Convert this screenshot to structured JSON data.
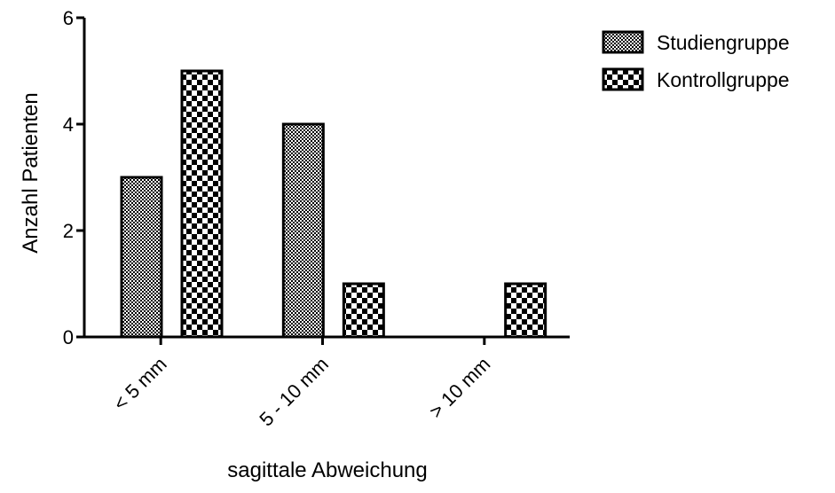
{
  "chart_data": {
    "type": "bar",
    "title": "",
    "xlabel": "sagittale Abweichung",
    "ylabel": "Anzahl Patienten",
    "categories": [
      "< 5 mm",
      "5 - 10 mm",
      "> 10 mm"
    ],
    "series": [
      {
        "name": "Studiengruppe",
        "values": [
          3,
          4,
          0
        ],
        "pattern": "fine-checker"
      },
      {
        "name": "Kontrollgruppe",
        "values": [
          5,
          1,
          1
        ],
        "pattern": "coarse-checker"
      }
    ],
    "ylim": [
      0,
      6
    ],
    "yticks": [
      0,
      2,
      4,
      6
    ],
    "grid": false,
    "legend_position": "top-right",
    "colors": {
      "fill_dark": "#000000",
      "fill_light": "#ffffff"
    }
  }
}
